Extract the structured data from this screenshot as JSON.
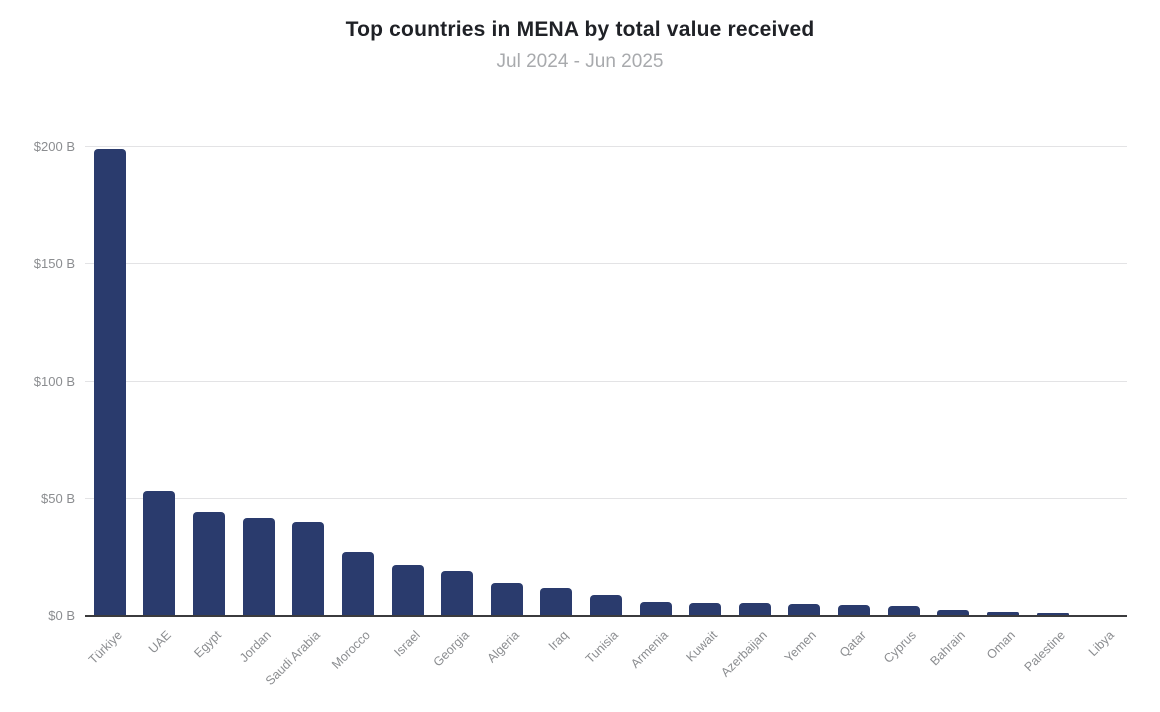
{
  "chart_data": {
    "type": "bar",
    "title": "Top countries in MENA by total value received",
    "subtitle": "Jul 2024 - Jun 2025",
    "categories": [
      "Türkiye",
      "UAE",
      "Egypt",
      "Jordan",
      "Saudi Arabia",
      "Morocco",
      "Israel",
      "Georgia",
      "Algeria",
      "Iraq",
      "Tunisia",
      "Armenia",
      "Kuwait",
      "Azerbaijan",
      "Yemen",
      "Qatar",
      "Cyprus",
      "Bahrain",
      "Oman",
      "Palestine",
      "Libya"
    ],
    "values": [
      199,
      53.3,
      44.2,
      41.8,
      40,
      27.5,
      21.6,
      19,
      14.2,
      12,
      9.1,
      6,
      5.5,
      5.4,
      5.3,
      4.8,
      4.3,
      2.6,
      1.6,
      1.2,
      0.2
    ],
    "unit": "billion USD",
    "xlabel": "",
    "ylabel": "",
    "ylim": [
      0,
      200
    ],
    "yticks": [
      0,
      50,
      100,
      150,
      200
    ],
    "ytick_labels": [
      "$0 B",
      "$50 B",
      "$100 B",
      "$150 B",
      "$200 B"
    ],
    "grid": true,
    "legend": false,
    "bar_color": "#2a3b6d",
    "gridline_color": "#e3e3e5",
    "axis_line_color": "#3b3b3d",
    "title_color": "#1f2126",
    "subtitle_color": "#a8aaad",
    "tick_label_color": "#8b8d90"
  }
}
